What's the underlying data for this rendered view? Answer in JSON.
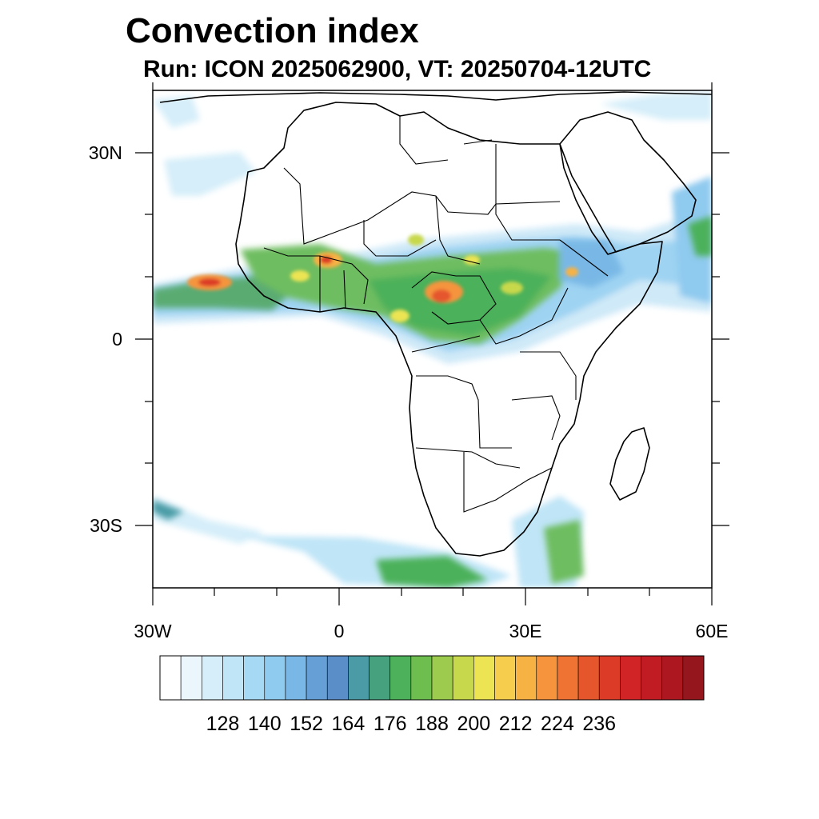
{
  "title": "Convection index",
  "subtitle": "Run: ICON 2025062900,  VT: 20250704-12UTC",
  "map": {
    "lon_range": [
      -30,
      60
    ],
    "lat_range": [
      -40,
      40
    ],
    "lon_tick_labels": [
      "30W",
      "0",
      "30E",
      "60E"
    ],
    "lat_tick_labels": [
      "30N",
      "0",
      "30S"
    ]
  },
  "colorbar": {
    "labels": [
      "128",
      "140",
      "152",
      "164",
      "176",
      "188",
      "200",
      "212",
      "224",
      "236"
    ],
    "colors": [
      "#ffffff",
      "#eaf6fc",
      "#d5eef9",
      "#bfe5f7",
      "#a6daf4",
      "#8fcaef",
      "#79b8e6",
      "#659fd6",
      "#5a8ec8",
      "#4a9ba6",
      "#46a17f",
      "#4cb15a",
      "#6ebd4f",
      "#9dcb4e",
      "#c8d84c",
      "#ece452",
      "#f6cd4c",
      "#f7b244",
      "#f5943d",
      "#ef7434",
      "#e5562d",
      "#dc3b28",
      "#d02427",
      "#c11c24",
      "#ad1820",
      "#96161d"
    ]
  }
}
